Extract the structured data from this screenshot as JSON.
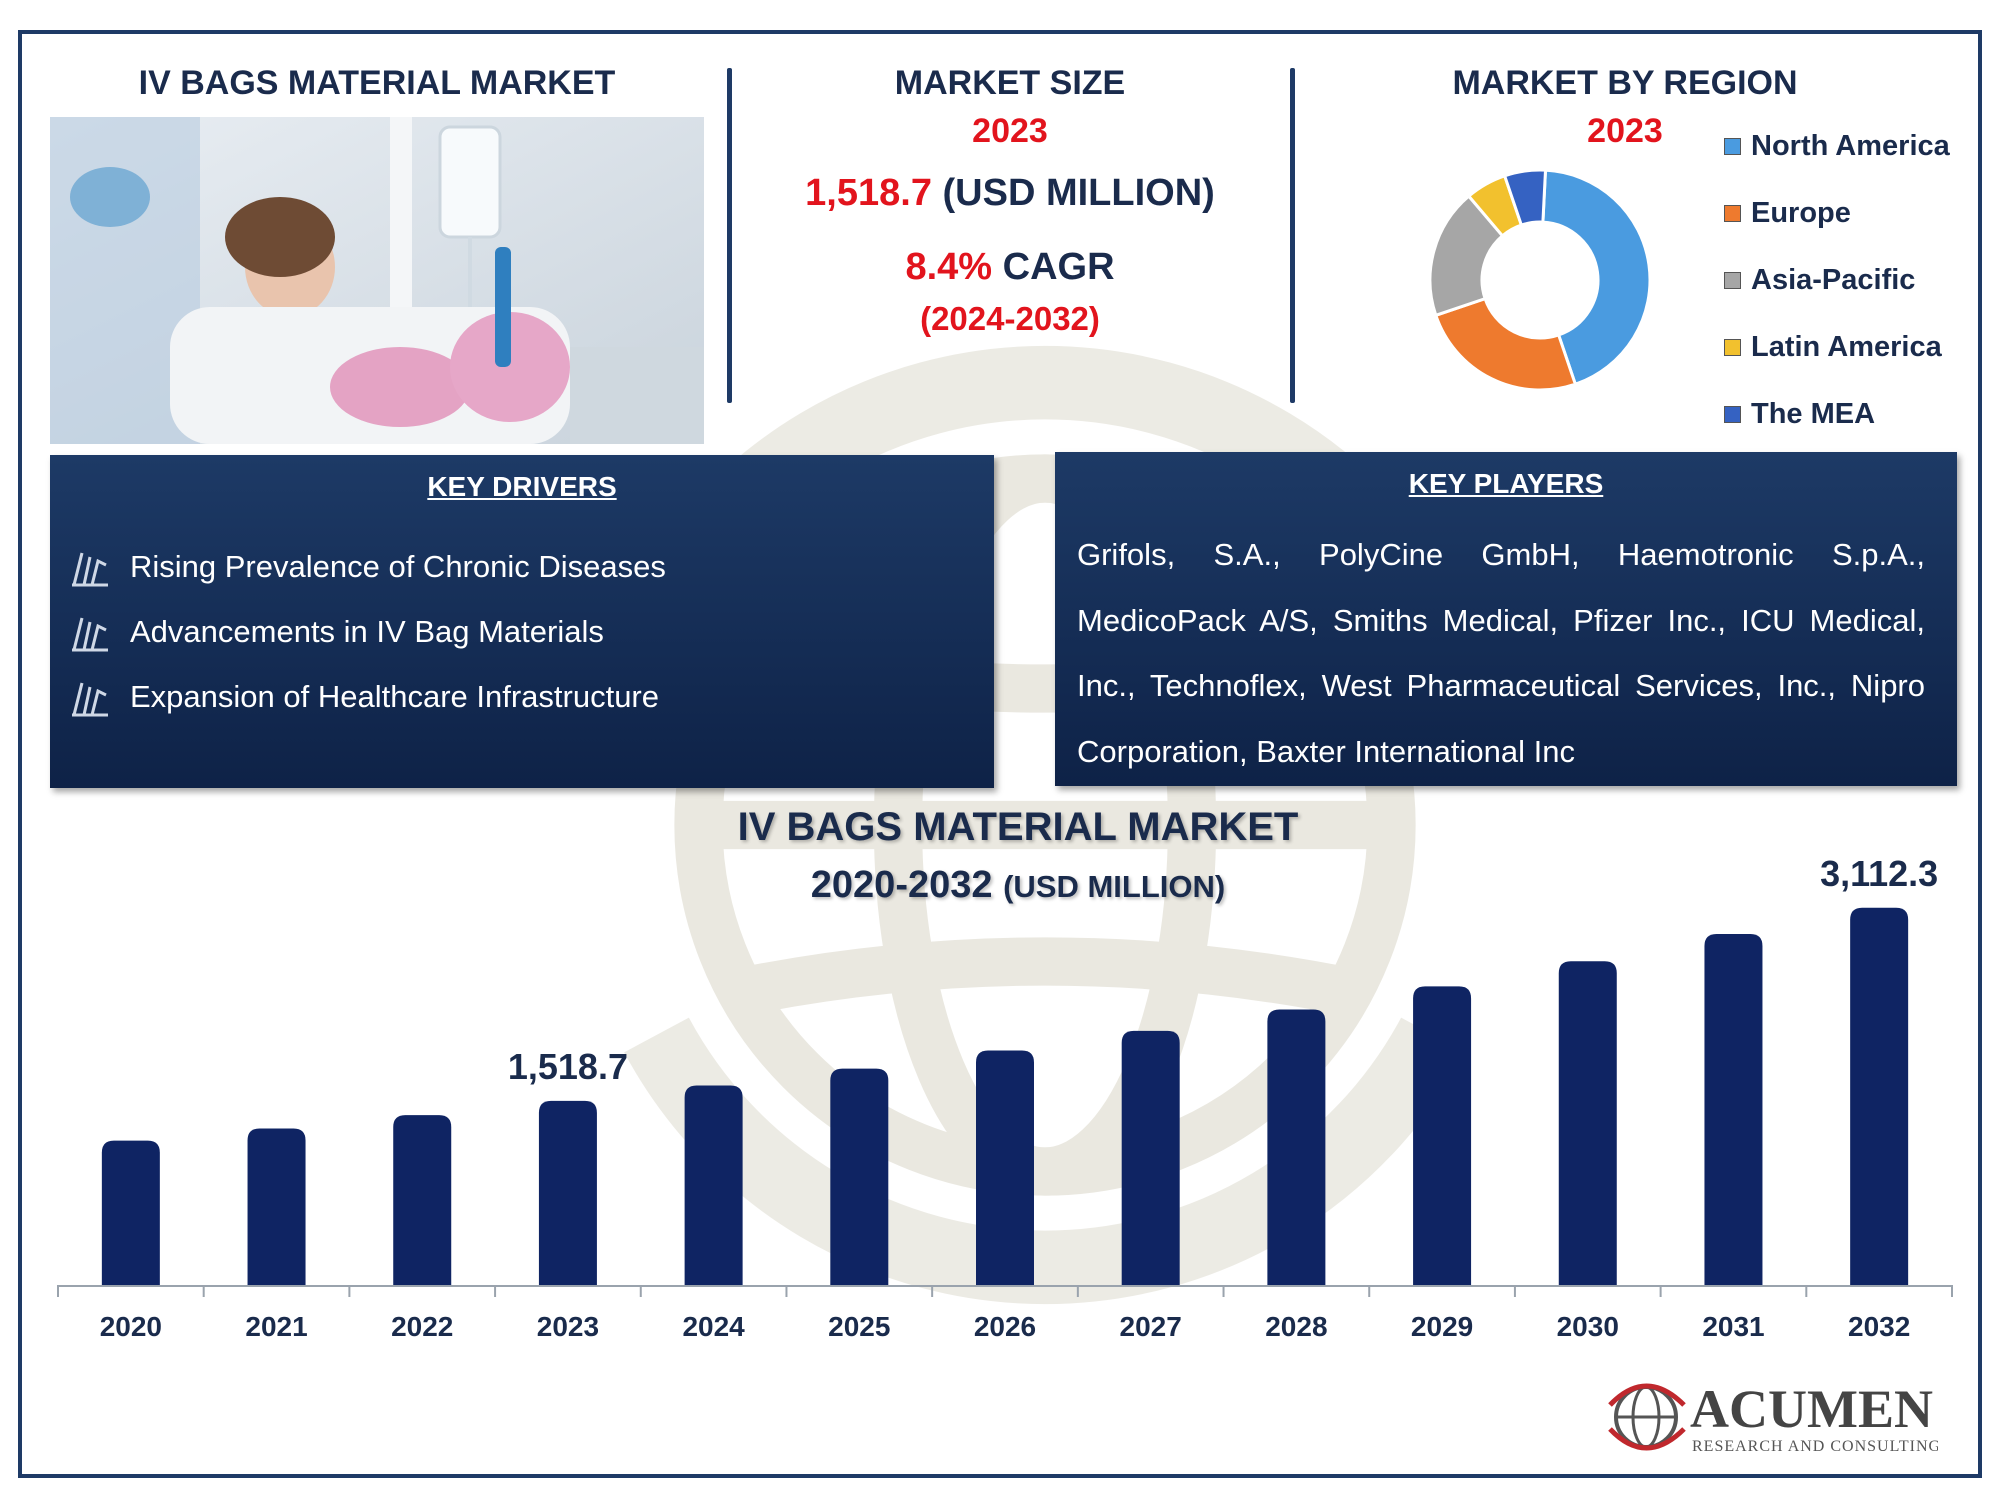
{
  "header": {
    "section1_title": "IV BAGS MATERIAL MARKET",
    "section2_title": "MARKET SIZE",
    "section2_year": "2023",
    "market_value": "1,518.7",
    "market_unit": "(USD MILLION)",
    "cagr_value": "8.4%",
    "cagr_label": "CAGR",
    "cagr_period": "(2024-2032)",
    "section3_title": "MARKET BY REGION",
    "section3_year": "2023"
  },
  "region_donut": {
    "legend": [
      {
        "label": "North America",
        "color": "#4a9be0"
      },
      {
        "label": "Europe",
        "color": "#ee7a2e"
      },
      {
        "label": "Asia-Pacific",
        "color": "#a6a6a6"
      },
      {
        "label": "Latin America",
        "color": "#f2c12e"
      },
      {
        "label": "The MEA",
        "color": "#3562c2"
      }
    ]
  },
  "key_drivers": {
    "title": "KEY DRIVERS",
    "items": [
      "Rising Prevalence of Chronic Diseases",
      "Advancements in IV Bag Materials",
      "Expansion of Healthcare Infrastructure"
    ]
  },
  "key_players": {
    "title": "KEY PLAYERS",
    "text": "Grifols, S.A., PolyCine GmbH, Haemotronic S.p.A., MedicoPack A/S, Smiths Medical, Pfizer Inc., ICU Medical, Inc., Technoflex, West Pharmaceutical Services, Inc., Nipro Corporation, Baxter International Inc"
  },
  "chart_data": {
    "type": "bar",
    "title": "IV BAGS MATERIAL MARKET",
    "subtitle_years": "2020-2032",
    "subtitle_unit": "(USD MILLION)",
    "categories": [
      "2020",
      "2021",
      "2022",
      "2023",
      "2024",
      "2025",
      "2026",
      "2027",
      "2028",
      "2029",
      "2030",
      "2031",
      "2032"
    ],
    "values": [
      1191,
      1291,
      1401,
      1518.7,
      1646,
      1785,
      1935,
      2097,
      2273,
      2464,
      2671,
      2896,
      3112.3
    ],
    "data_labels": [
      {
        "index": 3,
        "text": "1,518.7"
      },
      {
        "index": 12,
        "text": "3,112.3"
      }
    ],
    "bar_color": "#0f2463",
    "ylim": [
      0,
      3300
    ]
  },
  "brand": {
    "name": "ACUMEN",
    "tagline": "RESEARCH AND CONSULTING"
  }
}
